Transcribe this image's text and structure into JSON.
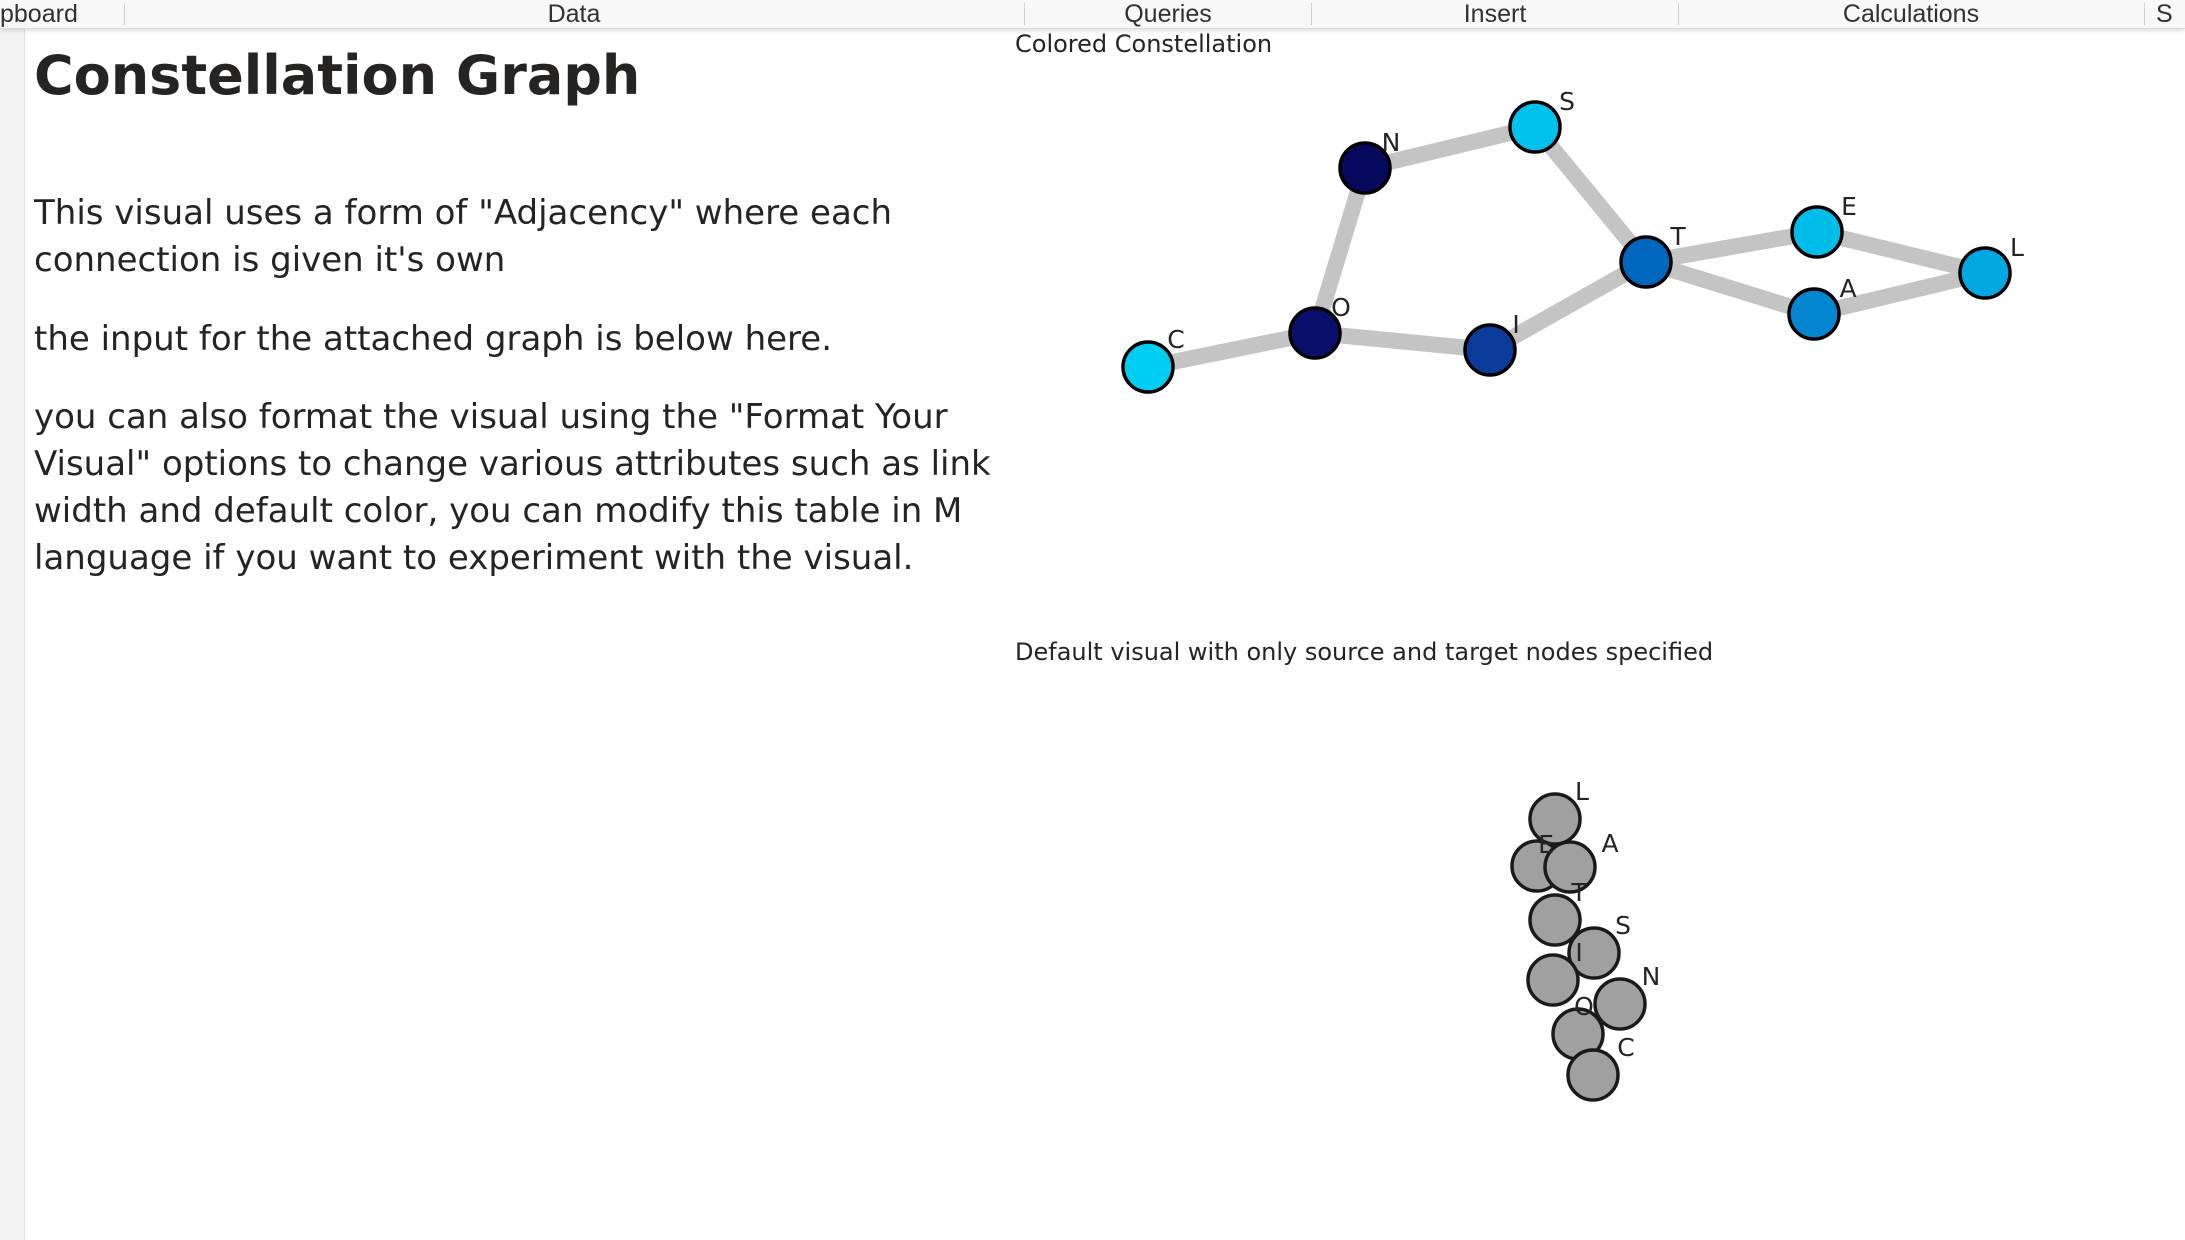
{
  "ribbon": {
    "groups": [
      "pboard",
      "Data",
      "Queries",
      "Insert",
      "Calculations",
      "S"
    ]
  },
  "page": {
    "title": "Constellation Graph",
    "paragraphs": [
      "This visual uses a form of \"Adjacency\" where each connection is given it's own",
      "the input for the attached graph is below here.",
      "you can also format the visual using the \"Format Your Visual\" options to change various attributes such as link width and default color, you can modify this table in M language if you want to experiment with the visual."
    ]
  },
  "visuals": {
    "colored": {
      "title": "Colored Constellation",
      "link_color": "#c4c4c4",
      "node_stroke": "#000000"
    },
    "default": {
      "title": "Default visual with only source and target nodes specified",
      "node_fill": "#a0a0a0",
      "node_stroke": "#1a1a1a"
    }
  },
  "chart_data": [
    {
      "type": "network",
      "title": "Colored Constellation",
      "nodes": [
        {
          "id": "C",
          "color": "#00cdf2"
        },
        {
          "id": "O",
          "color": "#0a0f6b"
        },
        {
          "id": "N",
          "color": "#07085c"
        },
        {
          "id": "S",
          "color": "#00c2ec"
        },
        {
          "id": "I",
          "color": "#0a3a9a"
        },
        {
          "id": "T",
          "color": "#0067bf"
        },
        {
          "id": "E",
          "color": "#00bde8"
        },
        {
          "id": "A",
          "color": "#0385d0"
        },
        {
          "id": "L",
          "color": "#00a8e2"
        }
      ],
      "links": [
        {
          "source": "C",
          "target": "O"
        },
        {
          "source": "O",
          "target": "N"
        },
        {
          "source": "N",
          "target": "S"
        },
        {
          "source": "S",
          "target": "T"
        },
        {
          "source": "O",
          "target": "I"
        },
        {
          "source": "I",
          "target": "T"
        },
        {
          "source": "T",
          "target": "E"
        },
        {
          "source": "T",
          "target": "A"
        },
        {
          "source": "E",
          "target": "L"
        },
        {
          "source": "A",
          "target": "L"
        }
      ]
    },
    {
      "type": "network",
      "title": "Default visual with only source and target nodes specified",
      "nodes": [
        {
          "id": "L"
        },
        {
          "id": "E"
        },
        {
          "id": "A"
        },
        {
          "id": "T"
        },
        {
          "id": "S"
        },
        {
          "id": "I"
        },
        {
          "id": "N"
        },
        {
          "id": "O"
        },
        {
          "id": "C"
        }
      ],
      "links": [
        {
          "source": "C",
          "target": "O"
        },
        {
          "source": "O",
          "target": "N"
        },
        {
          "source": "N",
          "target": "S"
        },
        {
          "source": "S",
          "target": "T"
        },
        {
          "source": "O",
          "target": "I"
        },
        {
          "source": "I",
          "target": "T"
        },
        {
          "source": "T",
          "target": "E"
        },
        {
          "source": "T",
          "target": "A"
        },
        {
          "source": "E",
          "target": "L"
        },
        {
          "source": "A",
          "target": "L"
        }
      ]
    }
  ]
}
